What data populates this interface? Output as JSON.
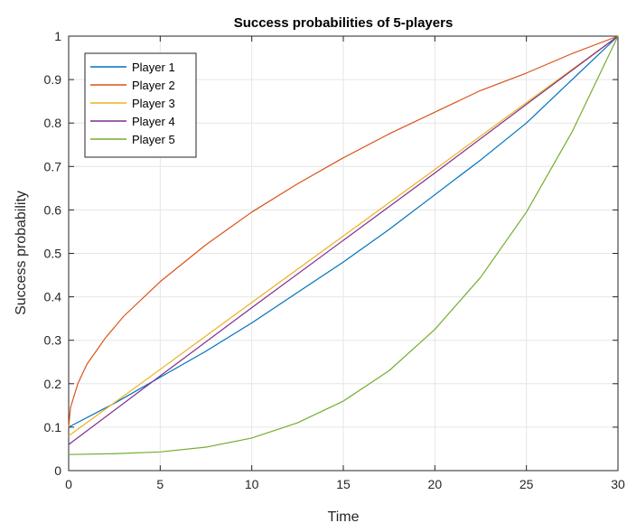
{
  "chart_data": {
    "type": "line",
    "title": "Success probabilities of 5-players",
    "xlabel": "Time",
    "ylabel": "Success probability",
    "xlim": [
      0,
      30
    ],
    "ylim": [
      0,
      1
    ],
    "xticks": [
      0,
      5,
      10,
      15,
      20,
      25,
      30
    ],
    "yticks": [
      0,
      0.1,
      0.2,
      0.3,
      0.4,
      0.5,
      0.6,
      0.7,
      0.8,
      0.9,
      1
    ],
    "grid": true,
    "legend_position": "top-left",
    "series": [
      {
        "name": "Player 1",
        "color": "#0072BD",
        "x": [
          0,
          2.5,
          5,
          7.5,
          10,
          12.5,
          15,
          17.5,
          20,
          22.5,
          25,
          27.5,
          30
        ],
        "y": [
          0.1,
          0.155,
          0.215,
          0.275,
          0.34,
          0.41,
          0.48,
          0.555,
          0.635,
          0.715,
          0.8,
          0.9,
          1.0
        ]
      },
      {
        "name": "Player 2",
        "color": "#D95319",
        "x": [
          0,
          0.1,
          0.5,
          1,
          2,
          3,
          5,
          7.5,
          10,
          12.5,
          15,
          17.5,
          20,
          22.5,
          25,
          27.5,
          30
        ],
        "y": [
          0.1,
          0.145,
          0.2,
          0.245,
          0.305,
          0.355,
          0.435,
          0.52,
          0.595,
          0.66,
          0.72,
          0.775,
          0.825,
          0.875,
          0.915,
          0.96,
          1.0
        ]
      },
      {
        "name": "Player 3",
        "color": "#EDB120",
        "x": [
          0,
          5,
          10,
          15,
          20,
          25,
          30
        ],
        "y": [
          0.08,
          0.233,
          0.387,
          0.54,
          0.693,
          0.847,
          1.0
        ]
      },
      {
        "name": "Player 4",
        "color": "#7E2F8E",
        "x": [
          0,
          5,
          10,
          15,
          20,
          25,
          30
        ],
        "y": [
          0.06,
          0.218,
          0.375,
          0.53,
          0.685,
          0.843,
          1.0
        ]
      },
      {
        "name": "Player 5",
        "color": "#77AC30",
        "x": [
          0,
          2.5,
          5,
          7.5,
          10,
          12.5,
          15,
          17.5,
          20,
          22.5,
          25,
          27.5,
          30
        ],
        "y": [
          0.037,
          0.039,
          0.043,
          0.054,
          0.075,
          0.11,
          0.16,
          0.23,
          0.325,
          0.445,
          0.595,
          0.78,
          1.0
        ]
      }
    ]
  }
}
